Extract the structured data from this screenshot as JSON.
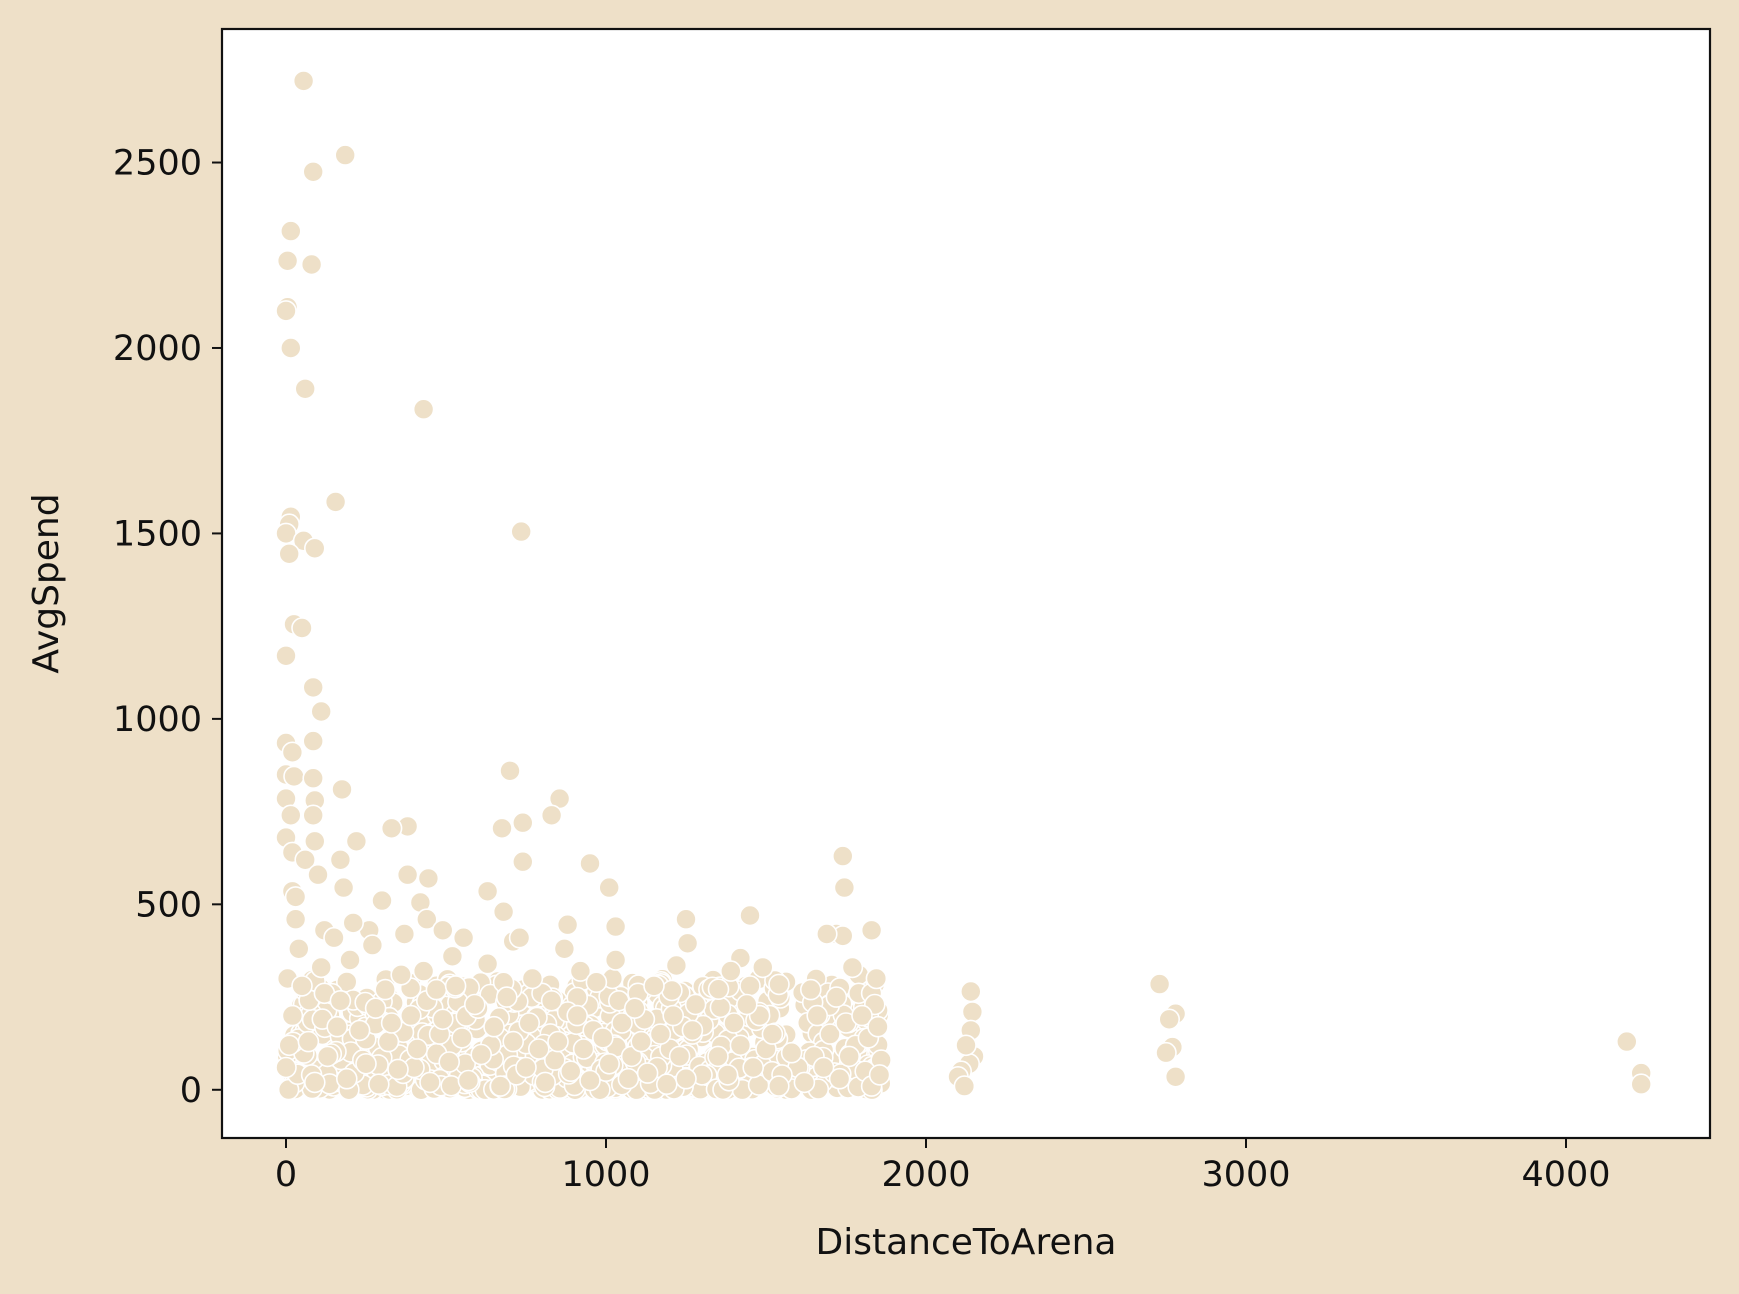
{
  "colors": {
    "background": "#EEE0C8",
    "plot_background": "#FFFFFF",
    "marker_fill": "#EEE0C8",
    "marker_edge": "#FFFFFF",
    "axis_line": "#111111",
    "text": "#111111"
  },
  "chart_data": {
    "type": "scatter",
    "title": "",
    "xlabel": "DistanceToArena",
    "ylabel": "AvgSpend",
    "xlim": [
      -200,
      4450
    ],
    "ylim": [
      -130,
      2860
    ],
    "xticks": [
      0,
      1000,
      2000,
      3000,
      4000
    ],
    "xtick_labels": [
      "0",
      "1000",
      "2000",
      "3000",
      "4000"
    ],
    "yticks": [
      0,
      500,
      1000,
      1500,
      2000,
      2500
    ],
    "ytick_labels": [
      "0",
      "500",
      "1000",
      "1500",
      "2000",
      "2500"
    ],
    "grid": false,
    "legend": "none",
    "dense_clusters": [
      {
        "x_range": [
          0,
          1860
        ],
        "y_range": [
          0,
          300
        ],
        "description": "dense band of overlapping points"
      }
    ],
    "points": [
      [
        55,
        2720
      ],
      [
        185,
        2520
      ],
      [
        85,
        2475
      ],
      [
        15,
        2315
      ],
      [
        80,
        2225
      ],
      [
        5,
        2235
      ],
      [
        5,
        2110
      ],
      [
        0,
        2100
      ],
      [
        15,
        2000
      ],
      [
        60,
        1890
      ],
      [
        430,
        1835
      ],
      [
        155,
        1585
      ],
      [
        735,
        1505
      ],
      [
        15,
        1545
      ],
      [
        10,
        1525
      ],
      [
        0,
        1500
      ],
      [
        55,
        1480
      ],
      [
        90,
        1460
      ],
      [
        10,
        1445
      ],
      [
        25,
        1255
      ],
      [
        50,
        1245
      ],
      [
        0,
        1170
      ],
      [
        85,
        1085
      ],
      [
        110,
        1020
      ],
      [
        0,
        935
      ],
      [
        85,
        940
      ],
      [
        20,
        910
      ],
      [
        700,
        860
      ],
      [
        0,
        850
      ],
      [
        25,
        845
      ],
      [
        85,
        840
      ],
      [
        175,
        810
      ],
      [
        855,
        785
      ],
      [
        0,
        785
      ],
      [
        90,
        780
      ],
      [
        830,
        740
      ],
      [
        15,
        740
      ],
      [
        85,
        740
      ],
      [
        740,
        720
      ],
      [
        380,
        710
      ],
      [
        330,
        705
      ],
      [
        675,
        705
      ],
      [
        220,
        670
      ],
      [
        0,
        680
      ],
      [
        90,
        670
      ],
      [
        20,
        640
      ],
      [
        1740,
        630
      ],
      [
        60,
        620
      ],
      [
        740,
        615
      ],
      [
        950,
        610
      ],
      [
        170,
        620
      ],
      [
        100,
        580
      ],
      [
        380,
        580
      ],
      [
        445,
        570
      ],
      [
        1745,
        545
      ],
      [
        1010,
        545
      ],
      [
        630,
        535
      ],
      [
        180,
        545
      ],
      [
        20,
        535
      ],
      [
        300,
        510
      ],
      [
        420,
        505
      ],
      [
        1250,
        460
      ],
      [
        1450,
        470
      ],
      [
        1830,
        430
      ],
      [
        1720,
        420
      ],
      [
        1740,
        415
      ],
      [
        1690,
        420
      ],
      [
        30,
        460
      ],
      [
        440,
        460
      ],
      [
        555,
        410
      ],
      [
        1030,
        440
      ],
      [
        1255,
        395
      ],
      [
        1420,
        355
      ],
      [
        1390,
        320
      ],
      [
        1490,
        330
      ],
      [
        1790,
        310
      ],
      [
        880,
        445
      ],
      [
        260,
        430
      ],
      [
        120,
        430
      ],
      [
        490,
        430
      ],
      [
        680,
        480
      ],
      [
        710,
        400
      ],
      [
        1220,
        335
      ],
      [
        1100,
        260
      ],
      [
        1020,
        300
      ],
      [
        1450,
        280
      ],
      [
        1640,
        270
      ],
      [
        1790,
        260
      ],
      [
        1830,
        260
      ],
      [
        2140,
        265
      ],
      [
        2730,
        285
      ],
      [
        2780,
        205
      ],
      [
        2760,
        190
      ],
      [
        2145,
        210
      ],
      [
        2140,
        160
      ],
      [
        2770,
        115
      ],
      [
        2750,
        100
      ],
      [
        2150,
        90
      ],
      [
        2135,
        70
      ],
      [
        2780,
        35
      ],
      [
        2110,
        50
      ],
      [
        2100,
        35
      ],
      [
        4190,
        130
      ],
      [
        4235,
        45
      ],
      [
        4235,
        15
      ],
      [
        1860,
        80
      ],
      [
        1840,
        230
      ],
      [
        1780,
        120
      ],
      [
        1700,
        150
      ],
      [
        1650,
        90
      ],
      [
        1600,
        60
      ],
      [
        1550,
        40
      ],
      [
        1500,
        110
      ],
      [
        1480,
        200
      ],
      [
        1400,
        180
      ],
      [
        1350,
        90
      ],
      [
        1300,
        40
      ],
      [
        1280,
        230
      ],
      [
        1240,
        170
      ],
      [
        1200,
        110
      ],
      [
        1160,
        60
      ],
      [
        1120,
        190
      ],
      [
        1080,
        90
      ],
      [
        1040,
        240
      ],
      [
        1000,
        50
      ],
      [
        960,
        160
      ],
      [
        920,
        320
      ],
      [
        880,
        210
      ],
      [
        840,
        80
      ],
      [
        800,
        260
      ],
      [
        760,
        180
      ],
      [
        720,
        40
      ],
      [
        680,
        290
      ],
      [
        640,
        120
      ],
      [
        600,
        220
      ],
      [
        560,
        70
      ],
      [
        520,
        360
      ],
      [
        480,
        150
      ],
      [
        440,
        240
      ],
      [
        400,
        60
      ],
      [
        360,
        310
      ],
      [
        320,
        130
      ],
      [
        280,
        220
      ],
      [
        240,
        80
      ],
      [
        200,
        350
      ],
      [
        160,
        170
      ],
      [
        120,
        260
      ],
      [
        80,
        40
      ],
      [
        40,
        380
      ],
      [
        20,
        200
      ],
      [
        10,
        120
      ],
      [
        0,
        60
      ],
      [
        5,
        300
      ],
      [
        30,
        520
      ],
      [
        50,
        280
      ],
      [
        70,
        130
      ],
      [
        90,
        20
      ],
      [
        110,
        330
      ],
      [
        130,
        90
      ],
      [
        150,
        410
      ],
      [
        170,
        240
      ],
      [
        190,
        30
      ],
      [
        210,
        450
      ],
      [
        230,
        160
      ],
      [
        250,
        70
      ],
      [
        270,
        390
      ],
      [
        290,
        15
      ],
      [
        310,
        270
      ],
      [
        330,
        180
      ],
      [
        350,
        55
      ],
      [
        370,
        420
      ],
      [
        390,
        200
      ],
      [
        410,
        110
      ],
      [
        430,
        320
      ],
      [
        450,
        20
      ],
      [
        470,
        270
      ],
      [
        490,
        190
      ],
      [
        510,
        75
      ],
      [
        530,
        280
      ],
      [
        550,
        140
      ],
      [
        570,
        25
      ],
      [
        590,
        230
      ],
      [
        610,
        95
      ],
      [
        630,
        340
      ],
      [
        650,
        170
      ],
      [
        670,
        10
      ],
      [
        690,
        250
      ],
      [
        710,
        130
      ],
      [
        730,
        410
      ],
      [
        750,
        60
      ],
      [
        770,
        300
      ],
      [
        790,
        110
      ],
      [
        810,
        20
      ],
      [
        830,
        240
      ],
      [
        850,
        130
      ],
      [
        870,
        380
      ],
      [
        890,
        50
      ],
      [
        910,
        200
      ],
      [
        930,
        110
      ],
      [
        950,
        25
      ],
      [
        970,
        290
      ],
      [
        990,
        140
      ],
      [
        1010,
        70
      ],
      [
        1030,
        350
      ],
      [
        1050,
        180
      ],
      [
        1070,
        30
      ],
      [
        1090,
        220
      ],
      [
        1110,
        130
      ],
      [
        1130,
        45
      ],
      [
        1150,
        280
      ],
      [
        1170,
        150
      ],
      [
        1190,
        15
      ],
      [
        1210,
        200
      ],
      [
        1230,
        90
      ],
      [
        1250,
        30
      ],
      [
        1270,
        160
      ],
      [
        1380,
        40
      ],
      [
        1420,
        120
      ],
      [
        1440,
        230
      ],
      [
        1460,
        60
      ],
      [
        1520,
        150
      ],
      [
        1540,
        10
      ],
      [
        1580,
        100
      ],
      [
        1620,
        20
      ],
      [
        1660,
        200
      ],
      [
        1680,
        60
      ],
      [
        1720,
        250
      ],
      [
        1730,
        30
      ],
      [
        1750,
        180
      ],
      [
        1760,
        90
      ],
      [
        1770,
        330
      ],
      [
        1800,
        200
      ],
      [
        1810,
        50
      ],
      [
        1820,
        140
      ],
      [
        1830,
        10
      ],
      [
        1845,
        300
      ],
      [
        1850,
        170
      ],
      [
        1855,
        40
      ],
      [
        2120,
        10
      ],
      [
        2125,
        120
      ]
    ]
  }
}
